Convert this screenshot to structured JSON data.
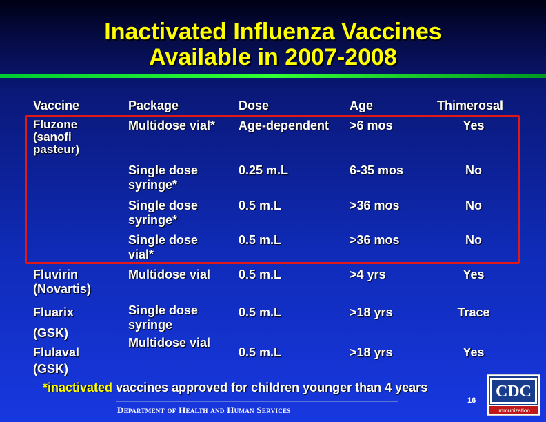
{
  "slide": {
    "title_line1": "Inactivated Influenza Vaccines",
    "title_line2": "Available in 2007-2008",
    "page_number": "16"
  },
  "headers": {
    "vaccine": "Vaccine",
    "package": "Package",
    "dose": "Dose",
    "age": "Age",
    "thimerosal": "Thimerosal"
  },
  "vaccines": {
    "fluzone_line1": "Fluzone",
    "fluzone_line2": "(sanofi",
    "fluzone_line3": "pasteur)",
    "fluvirin_line1": "Fluvirin",
    "fluvirin_line2": "(Novartis)",
    "fluarix_line1": "Fluarix",
    "fluarix_line2": "(GSK)",
    "flulaval_line1": "Flulaval",
    "flulaval_line2": "(GSK)"
  },
  "rows": [
    {
      "package_line1": "Multidose vial*",
      "package_line2": "",
      "dose": "Age-dependent",
      "age": ">6 mos",
      "thimerosal": "Yes"
    },
    {
      "package_line1": "Single dose",
      "package_line2": "syringe*",
      "dose": "0.25 m.L",
      "age": "6-35 mos",
      "thimerosal": "No"
    },
    {
      "package_line1": "Single dose",
      "package_line2": "syringe*",
      "dose": "0.5 m.L",
      "age": ">36 mos",
      "thimerosal": "No"
    },
    {
      "package_line1": "Single dose",
      "package_line2": "vial*",
      "dose": "0.5 m.L",
      "age": ">36 mos",
      "thimerosal": "No"
    },
    {
      "package_line1": "Multidose vial",
      "package_line2": "",
      "dose": "0.5 m.L",
      "age": ">4 yrs",
      "thimerosal": "Yes"
    },
    {
      "package_line1": "Single dose",
      "package_line2": "syringe",
      "dose": "0.5 m.L",
      "age": ">18 yrs",
      "thimerosal": "Trace"
    },
    {
      "package_line1": "Multidose vial",
      "package_line2": "",
      "dose": "0.5 m.L",
      "age": ">18 yrs",
      "thimerosal": "Yes"
    }
  ],
  "footnote": {
    "prefix": "*inactivated",
    "rest": " vaccines approved for children younger than 4 years"
  },
  "footer": {
    "department": "Department of Health and Human Services",
    "logo_text": "CDC",
    "logo_subtext": "Immunization"
  },
  "colors": {
    "title": "#ffff00",
    "highlight_border": "#e01818",
    "divider": "#33ff33",
    "background": "#0f2bb8"
  }
}
